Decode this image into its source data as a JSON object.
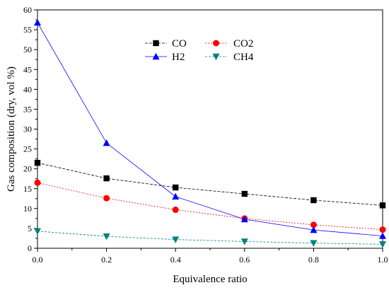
{
  "chart_data": {
    "type": "line",
    "title": "",
    "xlabel": "Equivalence ratio",
    "ylabel": "Gas composition (dry, vol %)",
    "x": [
      0.0,
      0.2,
      0.4,
      0.6,
      0.8,
      1.0
    ],
    "xlim": [
      0.0,
      1.0
    ],
    "ylim": [
      0,
      60
    ],
    "x_ticks": [
      "0.0",
      "0.2",
      "0.4",
      "0.6",
      "0.8",
      "1.0"
    ],
    "y_ticks": [
      "0",
      "5",
      "10",
      "15",
      "20",
      "25",
      "30",
      "35",
      "40",
      "45",
      "50",
      "55",
      "60"
    ],
    "grid": false,
    "legend_position": "top-right",
    "series": [
      {
        "name": "CO",
        "color": "#000000",
        "marker": "square",
        "values": [
          21.5,
          17.6,
          15.3,
          13.7,
          12.1,
          10.8
        ]
      },
      {
        "name": "CO2",
        "color": "#ff0000",
        "marker": "circle",
        "values": [
          16.5,
          12.6,
          9.7,
          7.5,
          5.9,
          4.7
        ]
      },
      {
        "name": "H2",
        "color": "#0000ff",
        "marker": "triangle-up",
        "values": [
          56.8,
          26.5,
          13.0,
          7.3,
          4.6,
          3.1
        ]
      },
      {
        "name": "CH4",
        "color": "#008080",
        "marker": "triangle-down",
        "values": [
          4.3,
          3.0,
          2.2,
          1.7,
          1.3,
          1.0
        ]
      }
    ]
  }
}
